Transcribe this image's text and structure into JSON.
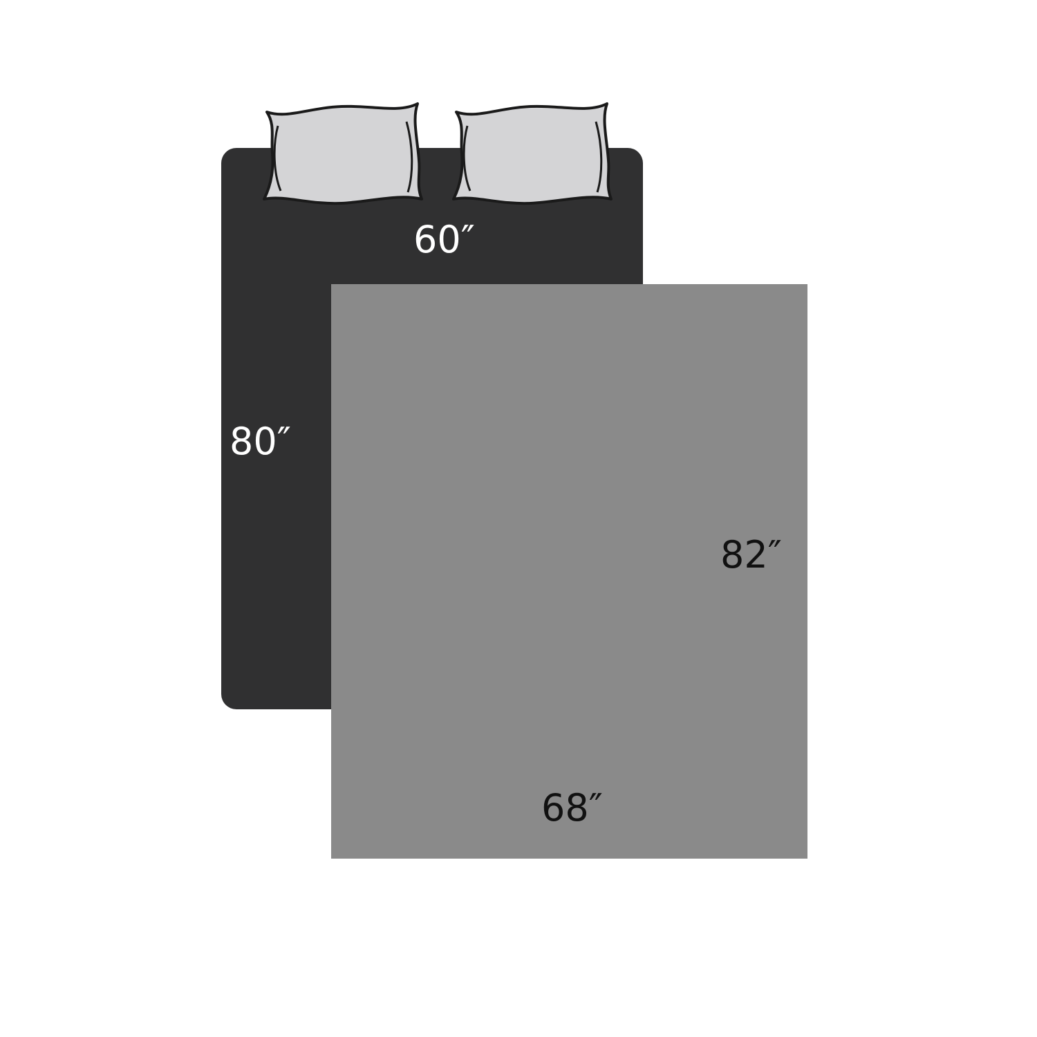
{
  "bed": {
    "width_label": "60″",
    "length_label": "80″",
    "color": "#303031"
  },
  "pillows": [
    {
      "icon": "pillow-icon",
      "color": "#d4d4d6"
    },
    {
      "icon": "pillow-icon",
      "color": "#d4d4d6"
    }
  ],
  "blanket": {
    "width_label": "68″",
    "length_label": "82″",
    "color": "#8a8a8a"
  },
  "colors": {
    "bed_label_text": "#ffffff",
    "blanket_label_text": "#111111",
    "pillow_outline": "#1a1a1a"
  }
}
